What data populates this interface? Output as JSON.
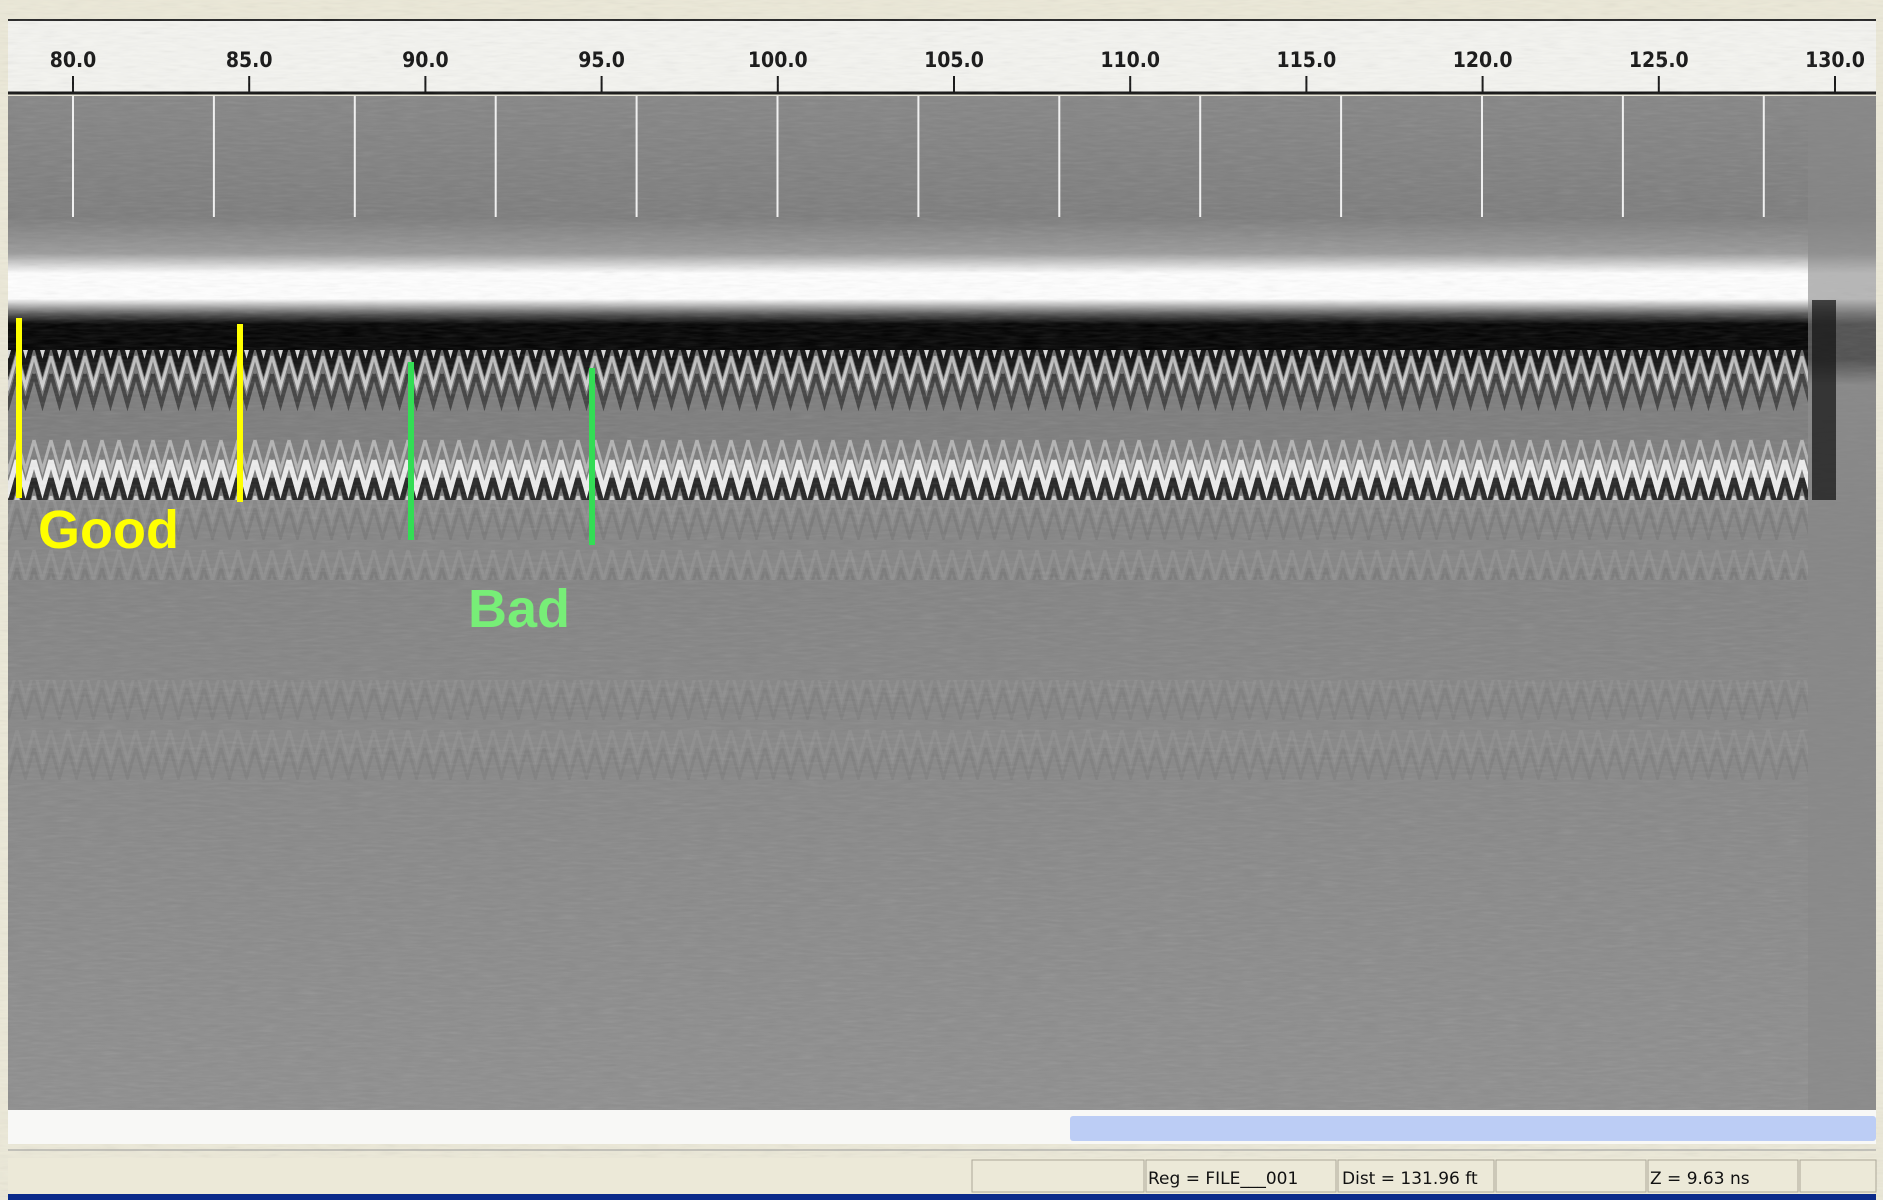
{
  "ruler": {
    "ticks": [
      {
        "value": 80,
        "label": "80.0"
      },
      {
        "value": 85,
        "label": "85.0"
      },
      {
        "value": 90,
        "label": "90.0"
      },
      {
        "value": 95,
        "label": "95.0"
      },
      {
        "value": 100,
        "label": "100.0"
      },
      {
        "value": 105,
        "label": "105.0"
      },
      {
        "value": 110,
        "label": "110.0"
      },
      {
        "value": 115,
        "label": "115.0"
      },
      {
        "value": 120,
        "label": "120.0"
      },
      {
        "value": 125,
        "label": "125.0"
      },
      {
        "value": 130,
        "label": "130.0"
      }
    ]
  },
  "annotations": {
    "good": "Good",
    "bad": "Bad"
  },
  "status_bar": {
    "register": "Reg = FILE___001",
    "distance": "Dist = 131.96 ft",
    "depth": "Z = 9.63 ns"
  }
}
